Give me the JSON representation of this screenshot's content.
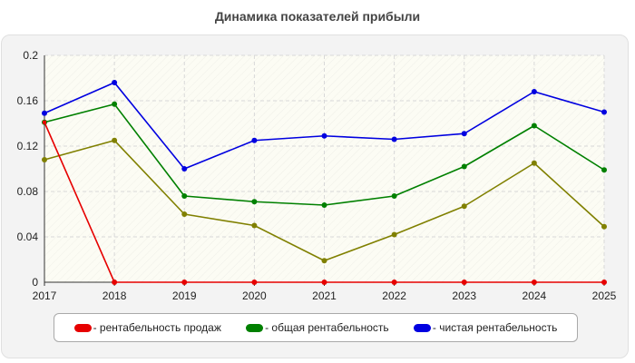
{
  "chart_data": {
    "type": "line",
    "title": "Динамика показателей прибыли",
    "categories": [
      "2017",
      "2018",
      "2019",
      "2020",
      "2021",
      "2022",
      "2023",
      "2024",
      "2025"
    ],
    "ylim": [
      0,
      0.2
    ],
    "yticks": [
      "0",
      "0.04",
      "0.08",
      "0.12",
      "0.16",
      "0.2"
    ],
    "grid": true,
    "legend_position": "bottom",
    "series": [
      {
        "name": "- рентабельность продаж",
        "color": "#e60000",
        "values": [
          0.141,
          0,
          0,
          0,
          0,
          0,
          0,
          0,
          0
        ],
        "in_legend": true
      },
      {
        "name": "- общая рентабельность",
        "color": "#008000",
        "values": [
          0.141,
          0.157,
          0.076,
          0.071,
          0.068,
          0.076,
          0.102,
          0.138,
          0.099
        ],
        "in_legend": true
      },
      {
        "name": "- чистая рентабельность",
        "color": "#0000e0",
        "values": [
          0.149,
          0.176,
          0.1,
          0.125,
          0.129,
          0.126,
          0.131,
          0.168,
          0.15
        ],
        "in_legend": true
      },
      {
        "name": "",
        "color": "#808000",
        "values": [
          0.108,
          0.125,
          0.06,
          0.05,
          0.019,
          0.042,
          0.067,
          0.105,
          0.049
        ],
        "in_legend": false
      }
    ]
  }
}
